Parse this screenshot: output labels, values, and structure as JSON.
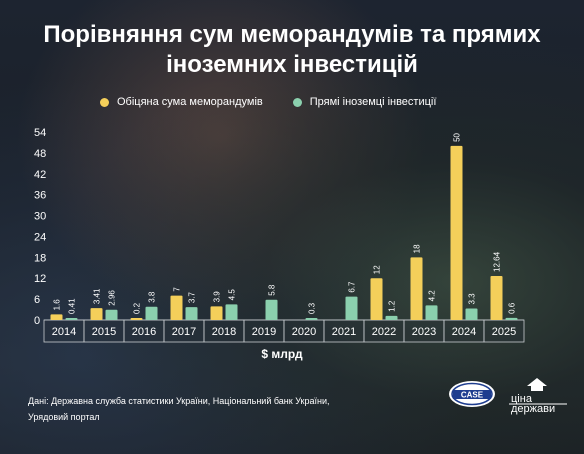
{
  "title_line1": "Порівняння сум меморандумів та прямих",
  "title_line2": "іноземних інвестицій",
  "legend": [
    {
      "label": "Обіцяна сума меморандумів",
      "color": "#f4cf5a"
    },
    {
      "label": "Прямі іноземці інвестиції",
      "color": "#8bd0ae"
    }
  ],
  "source": "Дані: Державна служба статистики України, Національний банк України, Урядовий портал",
  "logos": {
    "case": "CASE",
    "tsina_top": "ціна",
    "tsina_bottom": "держави"
  },
  "chart_data": {
    "type": "bar",
    "categories": [
      "2014",
      "2015",
      "2016",
      "2017",
      "2018",
      "2019",
      "2020",
      "2021",
      "2022",
      "2023",
      "2024",
      "2025"
    ],
    "series": [
      {
        "name": "Обіцяна сума меморандумів",
        "color": "#f4cf5a",
        "values": [
          1.6,
          3.41,
          0.2,
          7,
          3.9,
          null,
          null,
          null,
          12,
          18,
          50,
          12.64
        ],
        "labels": [
          "1.6",
          "3.41",
          "0.2",
          "7",
          "3.9",
          "",
          "",
          "",
          "12",
          "18",
          "50",
          "12.64"
        ]
      },
      {
        "name": "Прямі іноземці інвестиції",
        "color": "#8bd0ae",
        "values": [
          0.41,
          2.96,
          3.8,
          3.7,
          4.5,
          5.8,
          0.3,
          6.7,
          1.2,
          4.2,
          3.3,
          0.6
        ],
        "labels": [
          "0.41",
          "2.96",
          "3.8",
          "3.7",
          "4.5",
          "5.8",
          "0.3",
          "6.7",
          "1.2",
          "4.2",
          "3.3",
          "0.6"
        ]
      }
    ],
    "yticks": [
      0,
      6,
      12,
      18,
      24,
      30,
      36,
      42,
      48,
      54
    ],
    "ylim": [
      0,
      54
    ],
    "xlabel": "$ млрд",
    "grid": false
  }
}
